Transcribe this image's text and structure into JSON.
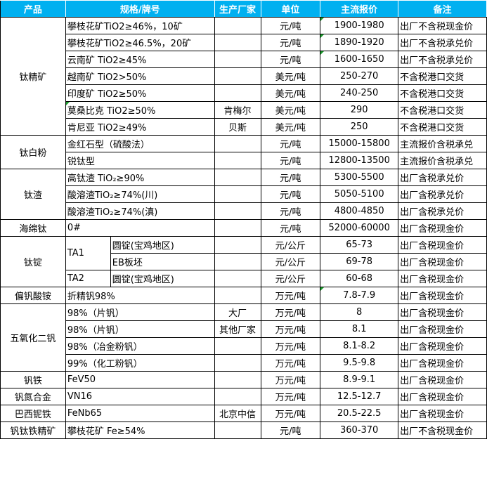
{
  "header": {
    "product": "产品",
    "spec": "规格/牌号",
    "maker": "生产厂家",
    "unit": "单位",
    "price": "主流报价",
    "note": "备注"
  },
  "colors": {
    "header_bg": "#00b0f0",
    "header_text": "#ffffff",
    "comment_marker": "#1a9c2c"
  },
  "groups": [
    {
      "product": "钛精矿",
      "rows": [
        {
          "spec": "攀枝花矿TiO2≥46%，10矿",
          "maker": "",
          "unit": "元/吨",
          "price": "1900-1980",
          "note": "出厂不含税现金价",
          "flag": "price"
        },
        {
          "spec": "攀枝花矿TiO2≥46.5%，20矿",
          "maker": "",
          "unit": "元/吨",
          "price": "1890-1920",
          "note": "出厂不含税承兑价",
          "flag": "price"
        },
        {
          "spec": "云南矿 TiO2≥45%",
          "maker": "",
          "unit": "元/吨",
          "price": "1600-1650",
          "note": "出厂不含税承兑价",
          "flag": "price"
        },
        {
          "spec": "越南矿 TiO2>50%",
          "maker": "",
          "unit": "美元/吨",
          "price": "250-270",
          "note": "不含税港口交货"
        },
        {
          "spec": "印度矿 TiO2≥50%",
          "maker": "",
          "unit": "美元/吨",
          "price": "240-250",
          "note": "不含税港口交货"
        },
        {
          "spec": "莫桑比克 TiO2≥50%",
          "maker": "肯梅尔",
          "unit": "美元/吨",
          "price": "290",
          "note": "不含税港口交货",
          "flag": "spec"
        },
        {
          "spec": "肯尼亚 TiO2≥49%",
          "maker": "贝斯",
          "unit": "美元/吨",
          "price": "250",
          "note": "不含税港口交货"
        }
      ]
    },
    {
      "product": "钛白粉",
      "rows": [
        {
          "spec": "金红石型（硫酸法）",
          "maker": "",
          "unit": "元/吨",
          "price": "15000-15800",
          "note": "主流报价含税承兑"
        },
        {
          "spec": "锐钛型",
          "maker": "",
          "unit": "元/吨",
          "price": "12800-13500",
          "note": "主流报价含税承兑"
        }
      ]
    },
    {
      "product": "钛渣",
      "rows": [
        {
          "spec": "高钛渣 TiO₂≥90%",
          "maker": "",
          "unit": "元/吨",
          "price": "5300-5500",
          "note": "出厂含税承兑价"
        },
        {
          "spec": "酸溶渣TiO₂≥74%(川)",
          "maker": "",
          "unit": "元/吨",
          "price": "5050-5100",
          "note": "出厂含税承兑价"
        },
        {
          "spec": "酸溶渣TiO₂≥74%(滇)",
          "maker": "",
          "unit": "元/吨",
          "price": "4800-4850",
          "note": "出厂含税承兑价"
        }
      ]
    },
    {
      "product": "海绵钛",
      "rows": [
        {
          "spec": "0#",
          "maker": "",
          "unit": "元/吨",
          "price": "52000-60000",
          "note": "出厂含税现金价"
        }
      ]
    },
    {
      "product": "钛锭",
      "rows": [
        {
          "grade": "TA1",
          "grade_span": 2,
          "spec": "圆锭(宝鸡地区)",
          "maker": "",
          "unit": "元/公斤",
          "price": "65-73",
          "note": "出厂含税现金价"
        },
        {
          "spec": "EB板坯",
          "maker": "",
          "unit": "元/公斤",
          "price": "69-78",
          "note": "出厂含税现金价"
        },
        {
          "grade": "TA2",
          "grade_span": 1,
          "spec": "圆锭(宝鸡地区)",
          "maker": "",
          "unit": "元/公斤",
          "price": "60-68",
          "note": "出厂含税现金价"
        }
      ]
    },
    {
      "product": "偏钒酸铵",
      "rows": [
        {
          "spec": "折精钒98%",
          "maker": "",
          "unit": "万元/吨",
          "price": "7.8-7.9",
          "note": "出厂含税现金价",
          "flag": "price"
        }
      ]
    },
    {
      "product": "五氧化二钒",
      "rows": [
        {
          "spec": "98%（片钒）",
          "maker": "大厂",
          "unit": "万元/吨",
          "price": "8",
          "note": "出厂含税现金价"
        },
        {
          "spec": "98%（片钒）",
          "maker": "其他厂家",
          "unit": "万元/吨",
          "price": "8.1",
          "note": "出厂含税现金价"
        },
        {
          "spec": "98%（冶金粉钒）",
          "maker": "",
          "unit": "万元/吨",
          "price": "8.1-8.2",
          "note": "出厂含税现金价"
        },
        {
          "spec": "99%（化工粉钒）",
          "maker": "",
          "unit": "万元/吨",
          "price": "9.5-9.8",
          "note": "出厂含税现金价"
        }
      ]
    },
    {
      "product": "钒铁",
      "rows": [
        {
          "spec": "FeV50",
          "maker": "",
          "unit": "万元/吨",
          "price": "8.9-9.1",
          "note": "出厂含税现金价"
        }
      ]
    },
    {
      "product": "钒氮合金",
      "rows": [
        {
          "spec": "VN16",
          "maker": "",
          "unit": "万元/吨",
          "price": "12.5-12.7",
          "note": "出厂含税现金价"
        }
      ]
    },
    {
      "product": "巴西铌铁",
      "rows": [
        {
          "spec": "FeNb65",
          "maker": "北京中信",
          "unit": "万元/吨",
          "price": "20.5-22.5",
          "note": "出厂含税现金价"
        }
      ]
    },
    {
      "product": "钒钛铁精矿",
      "rows": [
        {
          "spec": "攀枝花矿 Fe≥54%",
          "maker": "",
          "unit": "元/吨",
          "price": "360-370",
          "note": "出厂不含税现金价"
        }
      ]
    }
  ]
}
